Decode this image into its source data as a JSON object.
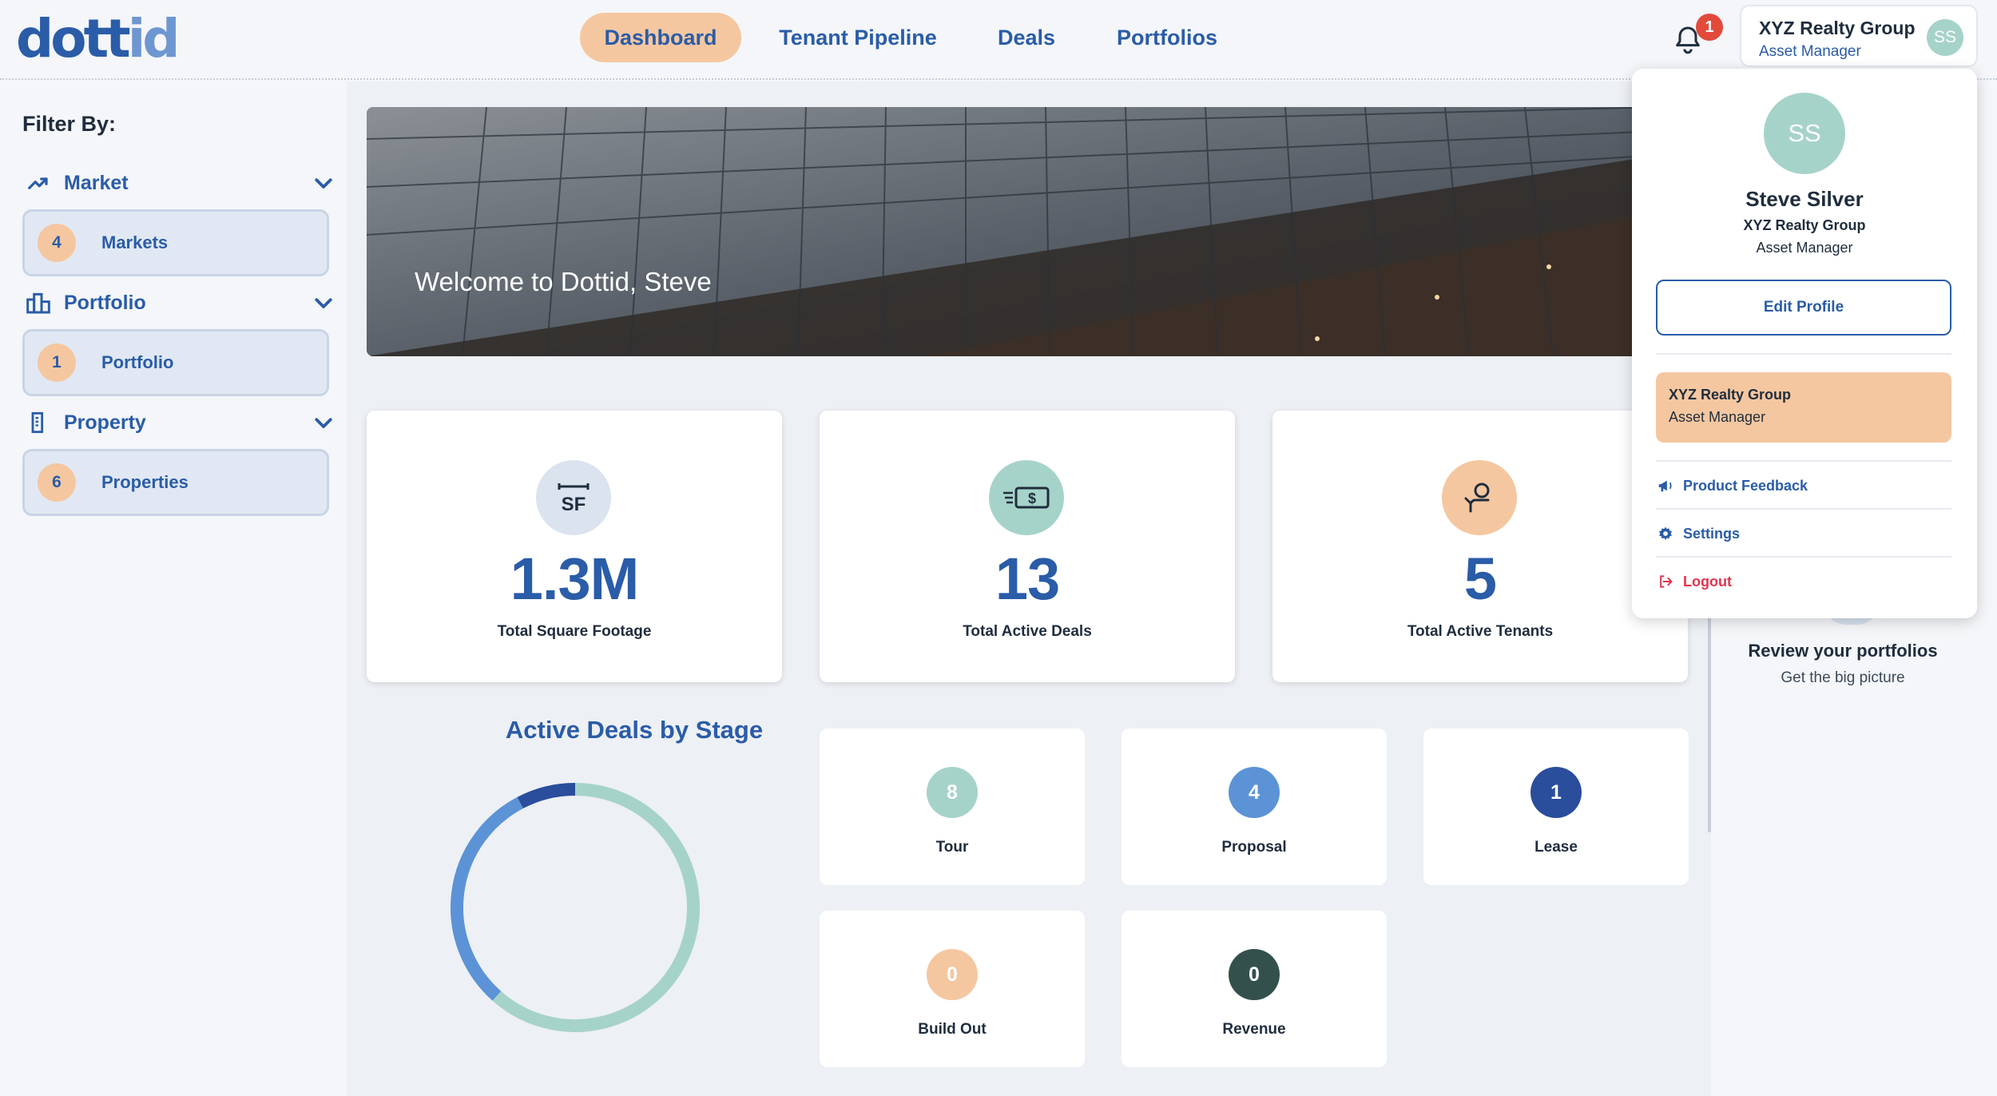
{
  "brand": {
    "logo_dark": "dott",
    "logo_light": "id"
  },
  "nav": [
    {
      "label": "Dashboard",
      "active": true
    },
    {
      "label": "Tenant Pipeline",
      "active": false
    },
    {
      "label": "Deals",
      "active": false
    },
    {
      "label": "Portfolios",
      "active": false
    }
  ],
  "notifications": {
    "count": "1",
    "icon": "bell-icon"
  },
  "account": {
    "org": "XYZ Realty Group",
    "role": "Asset Manager",
    "initials": "SS"
  },
  "sidebar": {
    "title": "Filter By:",
    "sections": [
      {
        "label": "Market",
        "icon": "trend-icon",
        "count": "4",
        "card_label": "Markets"
      },
      {
        "label": "Portfolio",
        "icon": "buildings-icon",
        "count": "1",
        "card_label": "Portfolio"
      },
      {
        "label": "Property",
        "icon": "building-icon",
        "count": "6",
        "card_label": "Properties"
      }
    ]
  },
  "hero": {
    "welcome": "Welcome to Dottid, Steve"
  },
  "stats": [
    {
      "value": "1.3M",
      "label": "Total Square Footage",
      "icon": "sf-icon",
      "color": "#dbe3ef"
    },
    {
      "value": "13",
      "label": "Total Active Deals",
      "icon": "money-icon",
      "color": "#a6d3c9"
    },
    {
      "value": "5",
      "label": "Total Active Tenants",
      "icon": "tenant-icon",
      "color": "#f5c7a0"
    }
  ],
  "deals_by_stage": {
    "title": "Active Deals by Stage",
    "stages": [
      {
        "label": "Tour",
        "count": "8",
        "color": "#a6d3c9"
      },
      {
        "label": "Proposal",
        "count": "4",
        "color": "#5b93d6"
      },
      {
        "label": "Lease",
        "count": "1",
        "color": "#2a4d9c"
      },
      {
        "label": "Build Out",
        "count": "0",
        "color": "#f5c7a0"
      },
      {
        "label": "Revenue",
        "count": "0",
        "color": "#34504c"
      }
    ]
  },
  "chart_data": {
    "type": "pie",
    "title": "Active Deals by Stage",
    "categories": [
      "Tour",
      "Proposal",
      "Lease",
      "Build Out",
      "Revenue"
    ],
    "values": [
      8,
      4,
      1,
      0,
      0
    ]
  },
  "right_panel": {
    "title": "Review your portfolios",
    "subtitle": "Get the big picture"
  },
  "profile_menu": {
    "initials": "SS",
    "name": "Steve Silver",
    "org": "XYZ Realty Group",
    "role": "Asset Manager",
    "edit_label": "Edit Profile",
    "active_org": {
      "name": "XYZ Realty Group",
      "role": "Asset Manager"
    },
    "items": [
      {
        "label": "Product Feedback",
        "icon": "megaphone-icon"
      },
      {
        "label": "Settings",
        "icon": "gear-icon"
      },
      {
        "label": "Logout",
        "icon": "logout-icon"
      }
    ]
  },
  "colors": {
    "brand": "#2a5ca8",
    "accent": "#f5c7a0",
    "teal": "#a6d3c9",
    "danger": "#e0344f"
  }
}
